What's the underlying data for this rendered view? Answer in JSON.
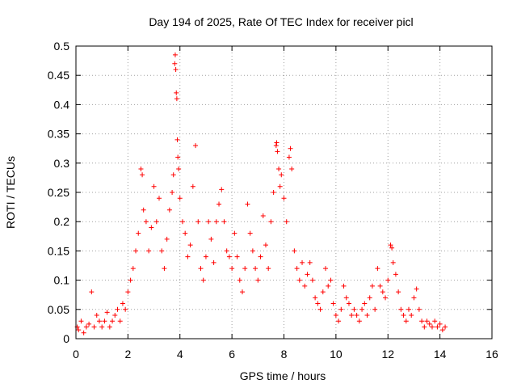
{
  "chart_data": {
    "type": "scatter",
    "title": "Day 194 of 2025, Rate Of TEC Index for receiver picl",
    "xlabel": "GPS time / hours",
    "ylabel": "ROTI / TECUs",
    "xlim": [
      0,
      16
    ],
    "ylim": [
      0,
      0.5
    ],
    "grid": true,
    "xticks": [
      0,
      2,
      4,
      6,
      8,
      10,
      12,
      14,
      16
    ],
    "yticks": [
      0,
      0.05,
      0.1,
      0.15,
      0.2,
      0.25,
      0.3,
      0.35,
      0.4,
      0.45,
      0.5
    ],
    "xtick_labels": [
      "0",
      "2",
      "4",
      "6",
      "8",
      "10",
      "12",
      "14",
      "16"
    ],
    "ytick_labels": [
      "0",
      "0.05",
      "0.1",
      "0.15",
      "0.2",
      "0.25",
      "0.3",
      "0.35",
      "0.4",
      "0.45",
      "0.5"
    ],
    "marker": "+",
    "marker_color": "#ff0000",
    "series": [
      {
        "name": "ROTI",
        "points": [
          [
            0.05,
            0.02
          ],
          [
            0.1,
            0.015
          ],
          [
            0.2,
            0.03
          ],
          [
            0.3,
            0.01
          ],
          [
            0.4,
            0.02
          ],
          [
            0.5,
            0.025
          ],
          [
            0.6,
            0.08
          ],
          [
            0.7,
            0.02
          ],
          [
            0.8,
            0.04
          ],
          [
            0.9,
            0.03
          ],
          [
            1.0,
            0.02
          ],
          [
            1.1,
            0.03
          ],
          [
            1.2,
            0.045
          ],
          [
            1.3,
            0.02
          ],
          [
            1.4,
            0.03
          ],
          [
            1.5,
            0.04
          ],
          [
            1.6,
            0.05
          ],
          [
            1.7,
            0.03
          ],
          [
            1.8,
            0.06
          ],
          [
            1.9,
            0.05
          ],
          [
            2.0,
            0.08
          ],
          [
            2.1,
            0.1
          ],
          [
            2.2,
            0.12
          ],
          [
            2.3,
            0.15
          ],
          [
            2.4,
            0.18
          ],
          [
            2.5,
            0.29
          ],
          [
            2.55,
            0.28
          ],
          [
            2.6,
            0.22
          ],
          [
            2.7,
            0.2
          ],
          [
            2.8,
            0.15
          ],
          [
            2.9,
            0.19
          ],
          [
            3.0,
            0.26
          ],
          [
            3.1,
            0.2
          ],
          [
            3.2,
            0.24
          ],
          [
            3.3,
            0.15
          ],
          [
            3.4,
            0.12
          ],
          [
            3.5,
            0.17
          ],
          [
            3.6,
            0.22
          ],
          [
            3.7,
            0.25
          ],
          [
            3.75,
            0.28
          ],
          [
            3.8,
            0.47
          ],
          [
            3.82,
            0.485
          ],
          [
            3.84,
            0.46
          ],
          [
            3.86,
            0.42
          ],
          [
            3.88,
            0.41
          ],
          [
            3.9,
            0.34
          ],
          [
            3.92,
            0.31
          ],
          [
            3.95,
            0.29
          ],
          [
            4.0,
            0.24
          ],
          [
            4.1,
            0.2
          ],
          [
            4.2,
            0.18
          ],
          [
            4.3,
            0.14
          ],
          [
            4.4,
            0.16
          ],
          [
            4.5,
            0.26
          ],
          [
            4.6,
            0.33
          ],
          [
            4.7,
            0.2
          ],
          [
            4.8,
            0.12
          ],
          [
            4.9,
            0.1
          ],
          [
            5.0,
            0.14
          ],
          [
            5.1,
            0.2
          ],
          [
            5.2,
            0.17
          ],
          [
            5.3,
            0.13
          ],
          [
            5.4,
            0.2
          ],
          [
            5.5,
            0.23
          ],
          [
            5.6,
            0.255
          ],
          [
            5.7,
            0.2
          ],
          [
            5.8,
            0.15
          ],
          [
            5.9,
            0.14
          ],
          [
            6.0,
            0.12
          ],
          [
            6.1,
            0.18
          ],
          [
            6.2,
            0.14
          ],
          [
            6.3,
            0.1
          ],
          [
            6.4,
            0.08
          ],
          [
            6.5,
            0.12
          ],
          [
            6.6,
            0.23
          ],
          [
            6.7,
            0.18
          ],
          [
            6.8,
            0.15
          ],
          [
            6.9,
            0.12
          ],
          [
            7.0,
            0.1
          ],
          [
            7.1,
            0.14
          ],
          [
            7.2,
            0.21
          ],
          [
            7.3,
            0.16
          ],
          [
            7.4,
            0.12
          ],
          [
            7.5,
            0.2
          ],
          [
            7.6,
            0.25
          ],
          [
            7.7,
            0.33
          ],
          [
            7.72,
            0.335
          ],
          [
            7.75,
            0.32
          ],
          [
            7.8,
            0.29
          ],
          [
            7.85,
            0.26
          ],
          [
            7.9,
            0.28
          ],
          [
            8.0,
            0.24
          ],
          [
            8.1,
            0.2
          ],
          [
            8.2,
            0.31
          ],
          [
            8.25,
            0.325
          ],
          [
            8.3,
            0.29
          ],
          [
            8.4,
            0.15
          ],
          [
            8.5,
            0.12
          ],
          [
            8.6,
            0.1
          ],
          [
            8.7,
            0.13
          ],
          [
            8.8,
            0.09
          ],
          [
            8.9,
            0.11
          ],
          [
            9.0,
            0.13
          ],
          [
            9.1,
            0.1
          ],
          [
            9.2,
            0.07
          ],
          [
            9.3,
            0.06
          ],
          [
            9.4,
            0.05
          ],
          [
            9.5,
            0.08
          ],
          [
            9.6,
            0.12
          ],
          [
            9.7,
            0.09
          ],
          [
            9.8,
            0.1
          ],
          [
            9.9,
            0.06
          ],
          [
            10.0,
            0.04
          ],
          [
            10.1,
            0.03
          ],
          [
            10.2,
            0.05
          ],
          [
            10.3,
            0.09
          ],
          [
            10.4,
            0.07
          ],
          [
            10.5,
            0.06
          ],
          [
            10.6,
            0.04
          ],
          [
            10.7,
            0.05
          ],
          [
            10.8,
            0.04
          ],
          [
            10.9,
            0.03
          ],
          [
            11.0,
            0.05
          ],
          [
            11.1,
            0.06
          ],
          [
            11.2,
            0.04
          ],
          [
            11.3,
            0.07
          ],
          [
            11.4,
            0.09
          ],
          [
            11.5,
            0.05
          ],
          [
            11.6,
            0.12
          ],
          [
            11.7,
            0.09
          ],
          [
            11.8,
            0.08
          ],
          [
            11.9,
            0.07
          ],
          [
            12.0,
            0.1
          ],
          [
            12.1,
            0.16
          ],
          [
            12.15,
            0.155
          ],
          [
            12.2,
            0.13
          ],
          [
            12.3,
            0.11
          ],
          [
            12.4,
            0.08
          ],
          [
            12.5,
            0.05
          ],
          [
            12.6,
            0.04
          ],
          [
            12.7,
            0.03
          ],
          [
            12.8,
            0.05
          ],
          [
            12.9,
            0.04
          ],
          [
            13.0,
            0.07
          ],
          [
            13.1,
            0.085
          ],
          [
            13.2,
            0.05
          ],
          [
            13.3,
            0.03
          ],
          [
            13.4,
            0.02
          ],
          [
            13.5,
            0.03
          ],
          [
            13.6,
            0.025
          ],
          [
            13.7,
            0.02
          ],
          [
            13.8,
            0.03
          ],
          [
            13.9,
            0.02
          ],
          [
            14.0,
            0.025
          ],
          [
            14.1,
            0.015
          ],
          [
            14.2,
            0.02
          ]
        ]
      }
    ]
  }
}
